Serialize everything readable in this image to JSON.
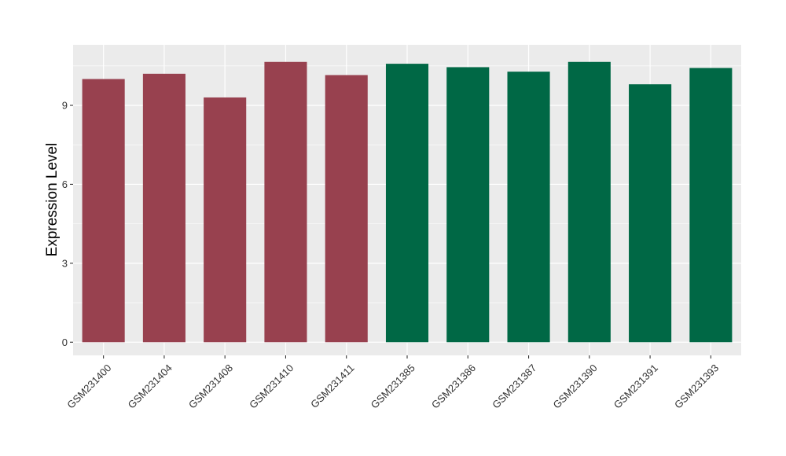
{
  "chart_data": {
    "type": "bar",
    "title": "",
    "xlabel": "",
    "ylabel": "Expression Level",
    "ylim": [
      -0.5,
      11.3
    ],
    "yticks": [
      0,
      3,
      6,
      9
    ],
    "grid": true,
    "legend": "none",
    "panel_background": "#EBEBEB",
    "grid_color": "#FFFFFF",
    "categories": [
      "GSM231400",
      "GSM231404",
      "GSM231408",
      "GSM231410",
      "GSM231411",
      "GSM231385",
      "GSM231386",
      "GSM231387",
      "GSM231390",
      "GSM231391",
      "GSM231393"
    ],
    "values": [
      10.0,
      10.2,
      9.3,
      10.65,
      10.15,
      10.58,
      10.45,
      10.28,
      10.65,
      9.8,
      10.42
    ],
    "bar_colors": [
      "#98414F",
      "#98414F",
      "#98414F",
      "#98414F",
      "#98414F",
      "#006845",
      "#006845",
      "#006845",
      "#006845",
      "#006845",
      "#006845"
    ]
  }
}
